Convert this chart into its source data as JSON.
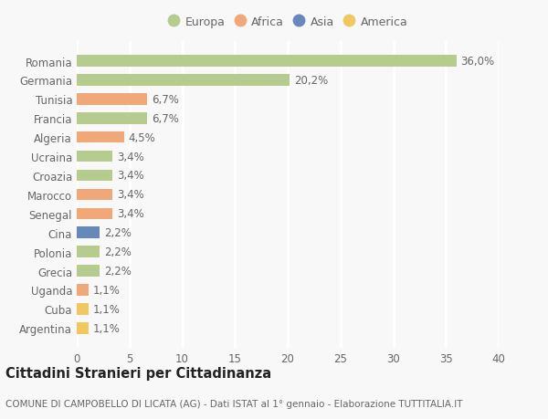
{
  "categories": [
    "Romania",
    "Germania",
    "Tunisia",
    "Francia",
    "Algeria",
    "Ucraina",
    "Croazia",
    "Marocco",
    "Senegal",
    "Cina",
    "Polonia",
    "Grecia",
    "Uganda",
    "Cuba",
    "Argentina"
  ],
  "values": [
    36.0,
    20.2,
    6.7,
    6.7,
    4.5,
    3.4,
    3.4,
    3.4,
    3.4,
    2.2,
    2.2,
    2.2,
    1.1,
    1.1,
    1.1
  ],
  "labels": [
    "36,0%",
    "20,2%",
    "6,7%",
    "6,7%",
    "4,5%",
    "3,4%",
    "3,4%",
    "3,4%",
    "3,4%",
    "2,2%",
    "2,2%",
    "2,2%",
    "1,1%",
    "1,1%",
    "1,1%"
  ],
  "continents": [
    "Europa",
    "Europa",
    "Africa",
    "Europa",
    "Africa",
    "Europa",
    "Europa",
    "Africa",
    "Africa",
    "Asia",
    "Europa",
    "Europa",
    "Africa",
    "America",
    "America"
  ],
  "continent_colors": {
    "Europa": "#b5cc8e",
    "Africa": "#f0a878",
    "Asia": "#6688bb",
    "America": "#f0c860"
  },
  "legend_order": [
    "Europa",
    "Africa",
    "Asia",
    "America"
  ],
  "title": "Cittadini Stranieri per Cittadinanza",
  "subtitle": "COMUNE DI CAMPOBELLO DI LICATA (AG) - Dati ISTAT al 1° gennaio - Elaborazione TUTTITALIA.IT",
  "xlim": [
    0,
    40
  ],
  "xticks": [
    0,
    5,
    10,
    15,
    20,
    25,
    30,
    35,
    40
  ],
  "background_color": "#f8f8f8",
  "grid_color": "#ffffff",
  "bar_height": 0.6,
  "label_fontsize": 8.5,
  "tick_fontsize": 8.5,
  "title_fontsize": 10.5,
  "subtitle_fontsize": 7.5
}
